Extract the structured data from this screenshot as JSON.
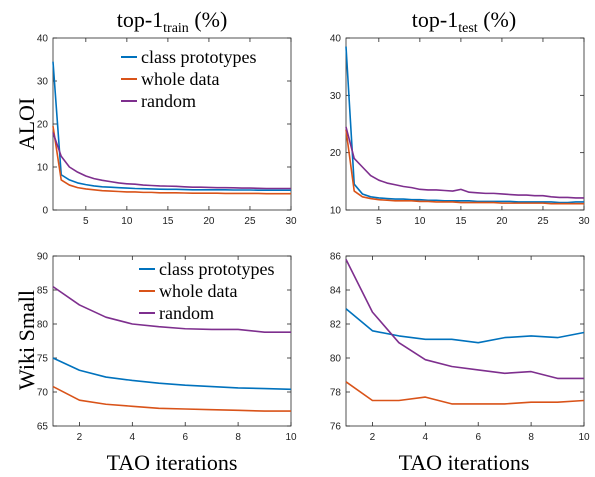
{
  "colors": {
    "class_prototypes": "#0072BD",
    "whole_data": "#D95319",
    "random": "#7E2F8E",
    "axes": "#262626",
    "grid": "#d9d9d9"
  },
  "columns": [
    {
      "title_main": "top-1",
      "title_sub": "train",
      "title_tail": " (%)"
    },
    {
      "title_main": "top-1",
      "title_sub": "test",
      "title_tail": " (%)"
    }
  ],
  "rows": [
    "ALOI",
    "Wiki Small"
  ],
  "chart_data": [
    {
      "type": "line",
      "panel": "ALOI / top-1 train",
      "xlim": [
        1,
        30
      ],
      "ylim": [
        0,
        40
      ],
      "xticks": [
        5,
        10,
        15,
        20,
        25,
        30
      ],
      "yticks": [
        0,
        10,
        20,
        30,
        40
      ],
      "x": [
        1,
        2,
        3,
        4,
        5,
        6,
        7,
        8,
        9,
        10,
        11,
        12,
        13,
        14,
        15,
        16,
        17,
        18,
        19,
        20,
        21,
        22,
        23,
        24,
        25,
        26,
        27,
        28,
        29,
        30
      ],
      "series": [
        {
          "name": "class prototypes",
          "color_key": "class_prototypes",
          "values": [
            34.5,
            8.2,
            7.0,
            6.3,
            5.9,
            5.6,
            5.4,
            5.3,
            5.2,
            5.1,
            5.0,
            4.95,
            4.9,
            4.85,
            4.8,
            4.8,
            4.75,
            4.7,
            4.7,
            4.7,
            4.7,
            4.7,
            4.65,
            4.65,
            4.65,
            4.6,
            4.6,
            4.6,
            4.6,
            4.6
          ]
        },
        {
          "name": "whole data",
          "color_key": "whole_data",
          "values": [
            19.5,
            7.0,
            5.8,
            5.2,
            4.9,
            4.7,
            4.5,
            4.4,
            4.3,
            4.2,
            4.2,
            4.1,
            4.1,
            4.0,
            4.0,
            4.0,
            3.95,
            3.9,
            3.9,
            3.9,
            3.9,
            3.85,
            3.85,
            3.85,
            3.85,
            3.85,
            3.8,
            3.8,
            3.8,
            3.8
          ]
        },
        {
          "name": "random",
          "color_key": "random",
          "values": [
            18.0,
            12.5,
            10.0,
            8.8,
            7.9,
            7.3,
            6.9,
            6.6,
            6.3,
            6.1,
            6.0,
            5.8,
            5.7,
            5.6,
            5.55,
            5.5,
            5.4,
            5.3,
            5.3,
            5.25,
            5.2,
            5.2,
            5.15,
            5.1,
            5.1,
            5.05,
            5.0,
            5.0,
            5.0,
            5.0
          ]
        }
      ],
      "legend": "top-right"
    },
    {
      "type": "line",
      "panel": "ALOI / top-1 test",
      "xlim": [
        1,
        30
      ],
      "ylim": [
        10,
        40
      ],
      "xticks": [
        5,
        10,
        15,
        20,
        25,
        30
      ],
      "yticks": [
        10,
        20,
        30,
        40
      ],
      "x": [
        1,
        2,
        3,
        4,
        5,
        6,
        7,
        8,
        9,
        10,
        11,
        12,
        13,
        14,
        15,
        16,
        17,
        18,
        19,
        20,
        21,
        22,
        23,
        24,
        25,
        26,
        27,
        28,
        29,
        30
      ],
      "series": [
        {
          "name": "class prototypes",
          "color_key": "class_prototypes",
          "values": [
            38.5,
            14.5,
            12.8,
            12.3,
            12.1,
            12.0,
            11.9,
            11.9,
            11.8,
            11.8,
            11.7,
            11.7,
            11.6,
            11.6,
            11.6,
            11.6,
            11.5,
            11.5,
            11.5,
            11.5,
            11.5,
            11.4,
            11.4,
            11.4,
            11.4,
            11.4,
            11.3,
            11.3,
            11.4,
            11.4
          ]
        },
        {
          "name": "whole data",
          "color_key": "whole_data",
          "values": [
            24.0,
            13.3,
            12.3,
            12.0,
            11.8,
            11.7,
            11.6,
            11.6,
            11.6,
            11.5,
            11.5,
            11.4,
            11.4,
            11.4,
            11.3,
            11.3,
            11.3,
            11.3,
            11.3,
            11.2,
            11.2,
            11.2,
            11.2,
            11.2,
            11.2,
            11.1,
            11.1,
            11.1,
            11.1,
            11.1
          ]
        },
        {
          "name": "random",
          "color_key": "random",
          "values": [
            24.5,
            19.0,
            17.5,
            16.0,
            15.2,
            14.7,
            14.4,
            14.1,
            13.9,
            13.6,
            13.5,
            13.5,
            13.4,
            13.3,
            13.6,
            13.1,
            13.0,
            12.9,
            12.9,
            12.8,
            12.7,
            12.6,
            12.6,
            12.5,
            12.5,
            12.3,
            12.2,
            12.2,
            12.1,
            12.1
          ]
        }
      ],
      "legend": "none"
    },
    {
      "type": "line",
      "panel": "Wiki Small / top-1 train",
      "xlim": [
        1,
        10
      ],
      "ylim": [
        65,
        90
      ],
      "xticks": [
        2,
        4,
        6,
        8,
        10
      ],
      "yticks": [
        65,
        70,
        75,
        80,
        85,
        90
      ],
      "x": [
        1,
        2,
        3,
        4,
        5,
        6,
        7,
        8,
        9,
        10
      ],
      "series": [
        {
          "name": "class prototypes",
          "color_key": "class_prototypes",
          "values": [
            75.0,
            73.2,
            72.2,
            71.7,
            71.3,
            71.0,
            70.8,
            70.6,
            70.5,
            70.4
          ]
        },
        {
          "name": "whole data",
          "color_key": "whole_data",
          "values": [
            70.8,
            68.8,
            68.2,
            67.9,
            67.6,
            67.5,
            67.4,
            67.3,
            67.2,
            67.2
          ]
        },
        {
          "name": "random",
          "color_key": "random",
          "values": [
            85.5,
            82.8,
            81.0,
            80.0,
            79.6,
            79.3,
            79.2,
            79.2,
            78.8,
            78.8
          ]
        }
      ],
      "legend": "top-right"
    },
    {
      "type": "line",
      "panel": "Wiki Small / top-1 test",
      "xlim": [
        1,
        10
      ],
      "ylim": [
        76,
        86
      ],
      "xticks": [
        2,
        4,
        6,
        8,
        10
      ],
      "yticks": [
        76,
        78,
        80,
        82,
        84,
        86
      ],
      "x": [
        1,
        2,
        3,
        4,
        5,
        6,
        7,
        8,
        9,
        10
      ],
      "series": [
        {
          "name": "class prototypes",
          "color_key": "class_prototypes",
          "values": [
            82.9,
            81.6,
            81.3,
            81.1,
            81.1,
            80.9,
            81.2,
            81.3,
            81.2,
            81.5
          ]
        },
        {
          "name": "whole data",
          "color_key": "whole_data",
          "values": [
            78.6,
            77.5,
            77.5,
            77.7,
            77.3,
            77.3,
            77.3,
            77.4,
            77.4,
            77.5
          ]
        },
        {
          "name": "random",
          "color_key": "random",
          "values": [
            85.8,
            82.7,
            80.9,
            79.9,
            79.5,
            79.3,
            79.1,
            79.2,
            78.8,
            78.8
          ]
        }
      ],
      "legend": "none"
    }
  ],
  "xlabel": "TAO iterations"
}
